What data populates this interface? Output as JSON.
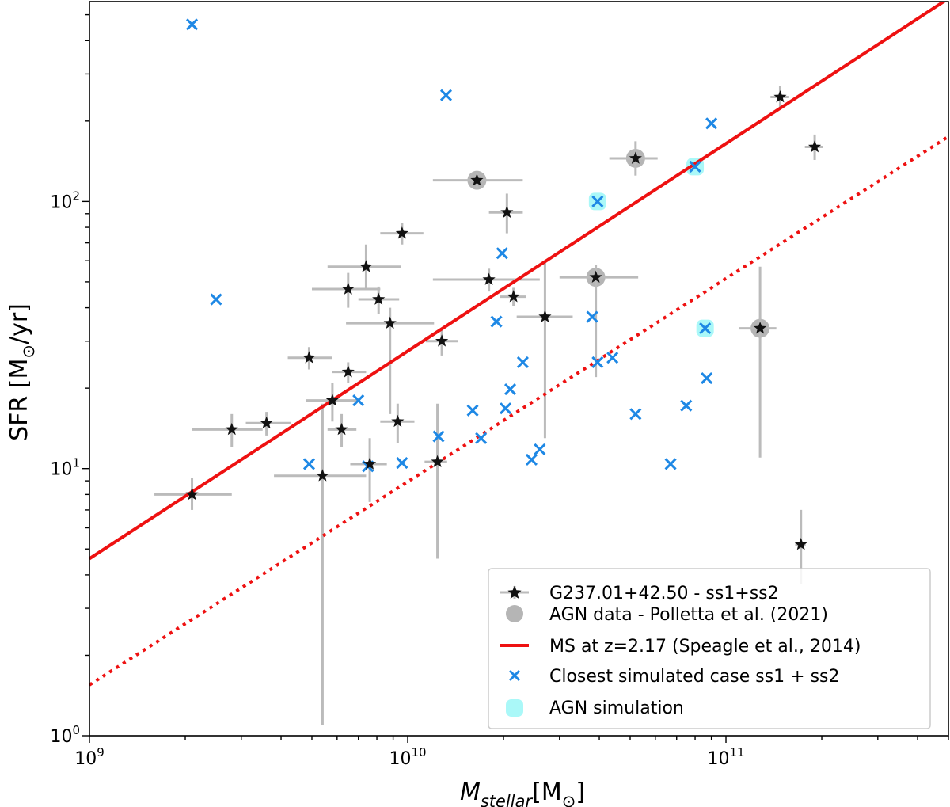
{
  "chart_data": {
    "type": "scatter",
    "xscale": "log",
    "yscale": "log",
    "xlim": [
      1000000000.0,
      500000000000.0
    ],
    "ylim": [
      1,
      560
    ],
    "xticks": [
      {
        "value": 1000000000.0,
        "base": "10",
        "exp": "9"
      },
      {
        "value": 10000000000.0,
        "base": "10",
        "exp": "10"
      },
      {
        "value": 100000000000.0,
        "base": "10",
        "exp": "11"
      }
    ],
    "yticks": [
      {
        "value": 1,
        "base": "10",
        "exp": "0"
      },
      {
        "value": 10,
        "base": "10",
        "exp": "1"
      },
      {
        "value": 100,
        "base": "10",
        "exp": "2"
      }
    ],
    "xlabel": {
      "main": "M",
      "sub": "stellar",
      "bracket_open": "[M",
      "sun": "⊙",
      "bracket_close": "]"
    },
    "ylabel": {
      "prefix": "SFR [M",
      "sun": "⊙",
      "suffix": "/yr]"
    },
    "colors": {
      "observed": "#111111",
      "errorbar": "#bbbbbb",
      "agn_data": "#b5b5b5",
      "ms_line": "#ee1111",
      "simulated": "#1e88e5",
      "agn_sim": "#aaf8f8"
    },
    "series": [
      {
        "name": "G237.01+42.50 - ss1+ss2",
        "marker": "star",
        "points": [
          {
            "x": 2100000000.0,
            "y": 8.0,
            "xerr": [
              1600000000.0,
              2800000000.0
            ],
            "yerr": [
              7.0,
              9.2
            ]
          },
          {
            "x": 2800000000.0,
            "y": 14.0,
            "xerr": [
              2100000000.0,
              3500000000.0
            ],
            "yerr": [
              12.0,
              16.0
            ]
          },
          {
            "x": 3600000000.0,
            "y": 14.8,
            "xerr": [
              3100000000.0,
              4300000000.0
            ],
            "yerr": [
              13.3,
              16.3
            ]
          },
          {
            "x": 4900000000.0,
            "y": 26.0,
            "xerr": [
              4200000000.0,
              5800000000.0
            ],
            "yerr": [
              23.5,
              28.5
            ]
          },
          {
            "x": 5400000000.0,
            "y": 9.4,
            "xerr": [
              3800000000.0,
              7400000000.0
            ],
            "yerr": [
              1.1,
              17.5
            ]
          },
          {
            "x": 5800000000.0,
            "y": 18.0,
            "xerr": [
              4800000000.0,
              7000000000.0
            ],
            "yerr": [
              15.0,
              21.0
            ]
          },
          {
            "x": 6200000000.0,
            "y": 14.0,
            "xerr": [
              5600000000.0,
              6900000000.0
            ],
            "yerr": [
              12.0,
              16.0
            ]
          },
          {
            "x": 6500000000.0,
            "y": 23.0,
            "xerr": [
              5800000000.0,
              7400000000.0
            ],
            "yerr": [
              21.0,
              25.0
            ]
          },
          {
            "x": 6500000000.0,
            "y": 47.0,
            "xerr": [
              5000000000.0,
              8200000000.0
            ],
            "yerr": [
              40.0,
              54.0
            ]
          },
          {
            "x": 7400000000.0,
            "y": 57.0,
            "xerr": [
              5600000000.0,
              9500000000.0
            ],
            "yerr": [
              47.0,
              69.0
            ]
          },
          {
            "x": 7600000000.0,
            "y": 10.4,
            "xerr": [
              6600000000.0,
              8600000000.0
            ],
            "yerr": [
              7.5,
              13.0
            ]
          },
          {
            "x": 8100000000.0,
            "y": 43.0,
            "xerr": [
              7000000000.0,
              9400000000.0
            ],
            "yerr": [
              38.0,
              48.0
            ]
          },
          {
            "x": 8800000000.0,
            "y": 35.0,
            "xerr": [
              6400000000.0,
              12100000000.0
            ],
            "yerr": [
              16.0,
              40.0
            ]
          },
          {
            "x": 9300000000.0,
            "y": 15.0,
            "xerr": [
              8200000000.0,
              10500000000.0
            ],
            "yerr": [
              12.5,
              17.5
            ]
          },
          {
            "x": 9600000000.0,
            "y": 76.0,
            "xerr": [
              8200000000.0,
              11200000000.0
            ],
            "yerr": [
              69.0,
              83.0
            ]
          },
          {
            "x": 12400000000.0,
            "y": 10.6,
            "xerr": [
              11300000000.0,
              13300000000.0
            ],
            "yerr": [
              4.6,
              17.5
            ]
          },
          {
            "x": 12800000000.0,
            "y": 30.0,
            "xerr": [
              11400000000.0,
              14400000000.0
            ],
            "yerr": [
              26.5,
              33.5
            ]
          },
          {
            "x": 16500000000.0,
            "y": 120.0,
            "xerr": [
              12000000000.0,
              23000000000.0
            ],
            "yerr": [
              113.0,
              127.0
            ],
            "agn": true
          },
          {
            "x": 18000000000.0,
            "y": 51.0,
            "xerr": [
              12000000000.0,
              26000000000.0
            ],
            "yerr": [
              46.0,
              56.0
            ]
          },
          {
            "x": 20500000000.0,
            "y": 91.0,
            "xerr": [
              18000000000.0,
              23000000000.0
            ],
            "yerr": [
              76.0,
              107.0
            ]
          },
          {
            "x": 21500000000.0,
            "y": 44.0,
            "xerr": [
              19500000000.0,
              23500000000.0
            ],
            "yerr": [
              40.5,
              47.5
            ]
          },
          {
            "x": 27000000000.0,
            "y": 37.0,
            "xerr": [
              22000000000.0,
              33000000000.0
            ],
            "yerr": [
              13.0,
              59.0
            ]
          },
          {
            "x": 39000000000.0,
            "y": 52.0,
            "xerr": [
              30000000000.0,
              53000000000.0
            ],
            "yerr": [
              22.0,
              58.0
            ],
            "agn": true
          },
          {
            "x": 52000000000.0,
            "y": 145.0,
            "xerr": [
              43000000000.0,
              61000000000.0
            ],
            "yerr": [
              125.0,
              168.0
            ],
            "agn": true
          },
          {
            "x": 128000000000.0,
            "y": 33.5,
            "xerr": [
              110000000000.0,
              144000000000.0
            ],
            "yerr": [
              11.0,
              57.0
            ],
            "agn": true
          },
          {
            "x": 148000000000.0,
            "y": 246.0,
            "xerr": [
              138000000000.0,
              158000000000.0
            ],
            "yerr": [
              222.0,
              270.0
            ]
          },
          {
            "x": 172000000000.0,
            "y": 5.2,
            "xerr": [
              165000000000.0,
              178000000000.0
            ],
            "yerr": [
              3.7,
              7.0
            ]
          },
          {
            "x": 190000000000.0,
            "y": 160.0,
            "xerr": [
              177000000000.0,
              202000000000.0
            ],
            "yerr": [
              143.0,
              178.0
            ]
          }
        ]
      },
      {
        "name": "Closest simulated case ss1 + ss2",
        "marker": "x",
        "points": [
          {
            "x": 2100000000.0,
            "y": 460.0
          },
          {
            "x": 2500000000.0,
            "y": 43.0
          },
          {
            "x": 4900000000.0,
            "y": 10.4
          },
          {
            "x": 7000000000.0,
            "y": 18.0
          },
          {
            "x": 7500000000.0,
            "y": 10.2
          },
          {
            "x": 9600000000.0,
            "y": 10.5
          },
          {
            "x": 12500000000.0,
            "y": 13.2
          },
          {
            "x": 13200000000.0,
            "y": 250.0
          },
          {
            "x": 16000000000.0,
            "y": 16.5
          },
          {
            "x": 17000000000.0,
            "y": 13.0
          },
          {
            "x": 19000000000.0,
            "y": 35.5
          },
          {
            "x": 19800000000.0,
            "y": 64.0
          },
          {
            "x": 20300000000.0,
            "y": 16.8
          },
          {
            "x": 21000000000.0,
            "y": 19.8
          },
          {
            "x": 23000000000.0,
            "y": 25.0
          },
          {
            "x": 24500000000.0,
            "y": 10.8
          },
          {
            "x": 26000000000.0,
            "y": 11.8
          },
          {
            "x": 38000000000.0,
            "y": 37.0
          },
          {
            "x": 39500000000.0,
            "y": 100.0,
            "agn": true
          },
          {
            "x": 39500000000.0,
            "y": 25.0
          },
          {
            "x": 44000000000.0,
            "y": 26.0
          },
          {
            "x": 52000000000.0,
            "y": 16.0
          },
          {
            "x": 67000000000.0,
            "y": 10.4
          },
          {
            "x": 75000000000.0,
            "y": 17.2
          },
          {
            "x": 80000000000.0,
            "y": 135.0,
            "agn": true
          },
          {
            "x": 86000000000.0,
            "y": 33.5,
            "agn": true
          },
          {
            "x": 87000000000.0,
            "y": 21.8
          },
          {
            "x": 90000000000.0,
            "y": 196.0
          }
        ]
      }
    ],
    "lines": [
      {
        "name": "MS at  z=2.17 (Speagle et al., 2014)",
        "style": "solid",
        "x": [
          1000000000.0,
          500000000000.0
        ],
        "y": [
          4.6,
          575.0
        ]
      },
      {
        "name": "MS offset (dotted)",
        "style": "dotted",
        "x": [
          1000000000.0,
          500000000000.0
        ],
        "y": [
          1.55,
          175.0
        ]
      }
    ],
    "legend": {
      "location": "lower right",
      "entries": [
        {
          "label": "G237.01+42.50 - ss1+ss2",
          "marker": "star-errorbar"
        },
        {
          "label": "AGN data - Polletta et al. (2021)",
          "marker": "grey-circle"
        },
        {
          "label": "MS at  z=2.17 (Speagle et al., 2014)",
          "marker": "red-line"
        },
        {
          "label": "Closest simulated case ss1 + ss2",
          "marker": "blue-x"
        },
        {
          "label": "AGN simulation",
          "marker": "cyan-square"
        }
      ]
    }
  }
}
